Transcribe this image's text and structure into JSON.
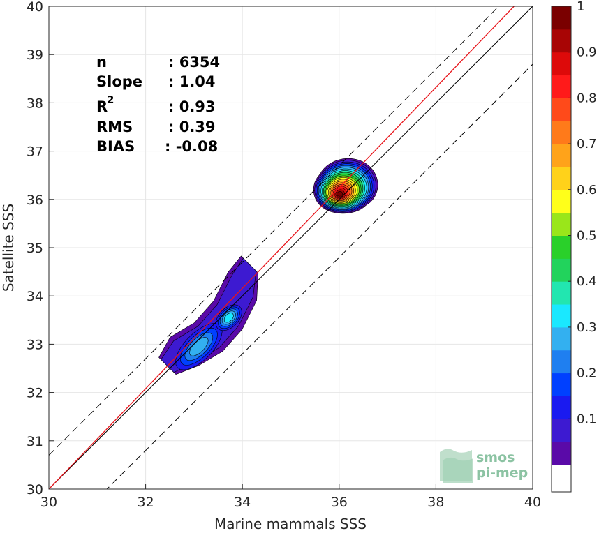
{
  "chart_data": {
    "type": "scatter",
    "subtype": "density-contour",
    "xlabel": "Marine mammals SSS",
    "ylabel": "Satellite SSS",
    "xlim": [
      30,
      40
    ],
    "ylim": [
      30,
      40
    ],
    "xticks": [
      "30",
      "32",
      "34",
      "36",
      "38",
      "40"
    ],
    "yticks": [
      "30",
      "31",
      "32",
      "33",
      "34",
      "35",
      "36",
      "37",
      "38",
      "39",
      "40"
    ],
    "grid": true,
    "stats": [
      {
        "label": "n",
        "value": ": 6354"
      },
      {
        "label": "Slope",
        "value": ": 1.04"
      },
      {
        "label": "R",
        "sup": "2",
        "value": ": 0.93"
      },
      {
        "label": "RMS",
        "value": ": 0.39"
      },
      {
        "label": "BIAS",
        "value": ": -0.08"
      }
    ],
    "reference_lines": [
      {
        "name": "1:1",
        "color": "#000000",
        "style": "solid",
        "slope": 1,
        "intercept": 0
      },
      {
        "name": "fit",
        "color": "#e8141a",
        "style": "solid",
        "points": [
          [
            30,
            30.0
          ],
          [
            40,
            40.4
          ]
        ]
      },
      {
        "name": "upper-bound",
        "color": "#000000",
        "style": "dashed",
        "slope": 1,
        "intercept": 0.7
      },
      {
        "name": "lower-bound",
        "color": "#000000",
        "style": "dashed",
        "slope": 1,
        "intercept": -1.2
      }
    ],
    "clusters": [
      {
        "name": "fresh-cluster",
        "center": [
          33.2,
          33.1
        ],
        "max_density": 0.35
      },
      {
        "name": "saline-cluster",
        "center": [
          36.0,
          36.1
        ],
        "max_density": 1.0
      }
    ],
    "colorbar": {
      "ticks": [
        "0.1",
        "0.2",
        "0.3",
        "0.4",
        "0.5",
        "0.6",
        "0.7",
        "0.8",
        "0.9",
        "1"
      ],
      "colors": [
        "#5a0aa8",
        "#3d1ad1",
        "#1a1af0",
        "#0040ff",
        "#1f7ff0",
        "#33b0f0",
        "#1ae8ff",
        "#22e6b0",
        "#22d35c",
        "#2ad02a",
        "#9ae61a",
        "#ffff1a",
        "#ffd21a",
        "#ffa31a",
        "#ff7a1a",
        "#ff4a1a",
        "#ff1a1a",
        "#dd0a0a",
        "#a80505",
        "#7a0000"
      ]
    },
    "watermark": {
      "line1": "smos",
      "line2": "pi-mep"
    }
  }
}
